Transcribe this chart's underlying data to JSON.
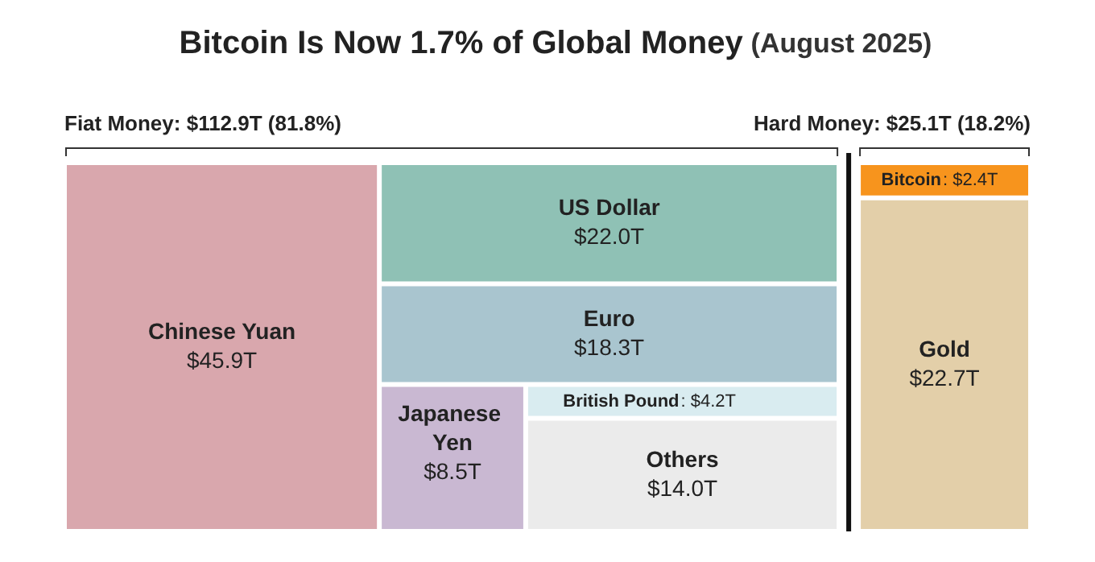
{
  "chart_data": [
    {
      "type": "other",
      "title": "Bitcoin Is Now 1.7% of Global Money",
      "subtitle": "(August 2025)",
      "annotations": [
        "Fiat Money: $112.9T (81.8%)"
      ],
      "categories": [
        "Chinese Yuan",
        "US Dollar",
        "Euro",
        "Japanese Yen",
        "British Pound",
        "Others"
      ],
      "values": [
        45.9,
        22.0,
        18.3,
        8.5,
        4.2,
        14.0
      ],
      "colors": [
        "#d9a7ad",
        "#8fc1b5",
        "#a9c5cf",
        "#c9b8d2",
        "#d9ecf0",
        "#ebebeb"
      ],
      "value_labels": [
        "$45.9T",
        "$22.0T",
        "$18.3T",
        "$8.5T",
        ": $4.2T",
        "$14.0T"
      ]
    },
    {
      "type": "other",
      "annotations": [
        "Hard Money: $25.1T (18.2%)"
      ],
      "categories": [
        "Bitcoin",
        "Gold"
      ],
      "values": [
        2.4,
        22.7
      ],
      "colors": [
        "#f7941d",
        "#e3cfa9"
      ],
      "value_labels": [
        ": $2.4T",
        "$22.7T"
      ]
    }
  ]
}
